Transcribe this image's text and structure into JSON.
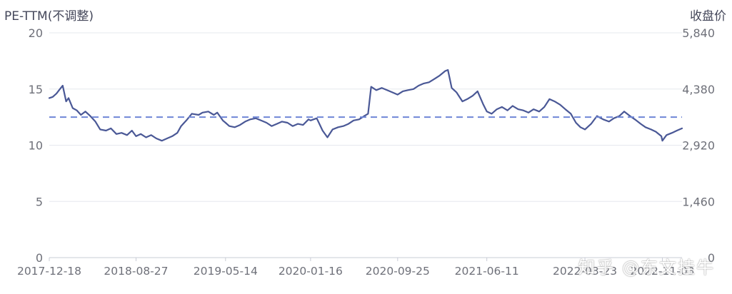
{
  "chart_data": {
    "type": "line",
    "left_axis_title": "PE-TTM(不调整)",
    "right_axis_title": "收盘价",
    "ylim": [
      0,
      20
    ],
    "y_ticks": [
      0,
      5,
      10,
      15,
      20
    ],
    "y_tick_labels": [
      "0",
      "5",
      "10",
      "15",
      "20"
    ],
    "y2_ticks": [
      0,
      1460,
      2920,
      4380,
      5840
    ],
    "y2_tick_labels": [
      "0",
      "1,460",
      "2,920",
      "4,380",
      "5,840"
    ],
    "x_tick_labels": [
      "2017-12-18",
      "2018-08-27",
      "2019-05-14",
      "2020-01-16",
      "2020-09-25",
      "2021-06-11",
      "2022-03-23",
      "2022-11-03"
    ],
    "x_tick_dates": [
      "2017-12-18",
      "2018-08-27",
      "2019-05-14",
      "2020-01-16",
      "2020-09-25",
      "2021-06-11",
      "2022-03-23",
      "2022-11-03"
    ],
    "reference_line": {
      "value": 12.5,
      "style": "dashed",
      "color": "#6f86d6"
    },
    "grid": true,
    "series": [
      {
        "color": "#4a5896",
        "x": [
          "2017-12-18",
          "2017-12-28",
          "2018-01-08",
          "2018-01-18",
          "2018-01-26",
          "2018-02-05",
          "2018-02-12",
          "2018-02-24",
          "2018-03-08",
          "2018-03-20",
          "2018-04-02",
          "2018-04-16",
          "2018-05-01",
          "2018-05-15",
          "2018-06-01",
          "2018-06-15",
          "2018-07-01",
          "2018-07-16",
          "2018-08-01",
          "2018-08-15",
          "2018-08-27",
          "2018-09-10",
          "2018-09-25",
          "2018-10-10",
          "2018-10-25",
          "2018-11-10",
          "2018-11-25",
          "2018-12-10",
          "2018-12-25",
          "2019-01-05",
          "2019-01-20",
          "2019-02-05",
          "2019-02-25",
          "2019-03-08",
          "2019-03-25",
          "2019-04-10",
          "2019-04-20",
          "2019-05-06",
          "2019-05-14",
          "2019-05-25",
          "2019-06-10",
          "2019-06-25",
          "2019-07-10",
          "2019-07-25",
          "2019-08-10",
          "2019-08-25",
          "2019-09-10",
          "2019-09-25",
          "2019-10-10",
          "2019-10-25",
          "2019-11-10",
          "2019-11-25",
          "2019-12-10",
          "2019-12-25",
          "2020-01-10",
          "2020-01-16",
          "2020-02-03",
          "2020-02-20",
          "2020-03-05",
          "2020-03-20",
          "2020-04-05",
          "2020-04-20",
          "2020-05-05",
          "2020-05-20",
          "2020-06-05",
          "2020-06-20",
          "2020-07-01",
          "2020-07-10",
          "2020-07-25",
          "2020-08-10",
          "2020-08-25",
          "2020-09-10",
          "2020-09-25",
          "2020-10-10",
          "2020-10-25",
          "2020-11-10",
          "2020-11-25",
          "2020-12-10",
          "2020-12-25",
          "2021-01-10",
          "2021-01-25",
          "2021-02-10",
          "2021-02-18",
          "2021-03-01",
          "2021-03-15",
          "2021-04-01",
          "2021-04-15",
          "2021-05-01",
          "2021-05-15",
          "2021-06-01",
          "2021-06-11",
          "2021-06-25",
          "2021-07-10",
          "2021-07-25",
          "2021-08-10",
          "2021-08-25",
          "2021-09-10",
          "2021-09-25",
          "2021-10-10",
          "2021-10-25",
          "2021-11-10",
          "2021-11-25",
          "2021-12-10",
          "2021-12-25",
          "2022-01-10",
          "2022-01-25",
          "2022-02-10",
          "2022-02-25",
          "2022-03-10",
          "2022-03-23",
          "2022-04-10",
          "2022-04-27",
          "2022-05-15",
          "2022-06-01",
          "2022-06-15",
          "2022-07-01",
          "2022-07-15",
          "2022-08-01",
          "2022-08-15",
          "2022-09-01",
          "2022-09-15",
          "2022-10-01",
          "2022-10-15",
          "2022-10-31",
          "2022-11-03",
          "2022-11-15",
          "2022-12-01",
          "2022-12-15",
          "2022-12-30"
        ],
        "values": [
          14.2,
          14.3,
          14.6,
          15.0,
          15.3,
          13.9,
          14.2,
          13.3,
          13.1,
          12.7,
          13.0,
          12.6,
          12.1,
          11.4,
          11.3,
          11.5,
          11.0,
          11.1,
          10.9,
          11.3,
          10.8,
          11.0,
          10.7,
          10.9,
          10.6,
          10.4,
          10.6,
          10.8,
          11.1,
          11.7,
          12.2,
          12.8,
          12.7,
          12.9,
          13.0,
          12.7,
          12.9,
          12.2,
          12.0,
          11.7,
          11.6,
          11.8,
          12.1,
          12.3,
          12.4,
          12.2,
          12.0,
          11.7,
          11.9,
          12.1,
          12.0,
          11.7,
          11.9,
          11.8,
          12.3,
          12.2,
          12.4,
          11.3,
          10.7,
          11.4,
          11.6,
          11.7,
          11.9,
          12.2,
          12.3,
          12.6,
          12.8,
          15.2,
          14.9,
          15.1,
          14.9,
          14.7,
          14.5,
          14.8,
          14.9,
          15.0,
          15.3,
          15.5,
          15.6,
          15.9,
          16.2,
          16.6,
          16.7,
          15.1,
          14.7,
          13.9,
          14.1,
          14.4,
          14.8,
          13.6,
          13.0,
          12.8,
          13.2,
          13.4,
          13.1,
          13.5,
          13.2,
          13.1,
          12.9,
          13.2,
          13.0,
          13.4,
          14.1,
          13.9,
          13.6,
          13.2,
          12.8,
          12.0,
          11.6,
          11.4,
          11.9,
          12.6,
          12.3,
          12.1,
          12.4,
          12.6,
          13.0,
          12.6,
          12.3,
          11.9,
          11.6,
          11.4,
          11.2,
          10.8,
          10.4,
          10.9,
          11.1,
          11.3,
          11.5
        ]
      }
    ]
  },
  "watermark": "知乎 @东文挂牛"
}
